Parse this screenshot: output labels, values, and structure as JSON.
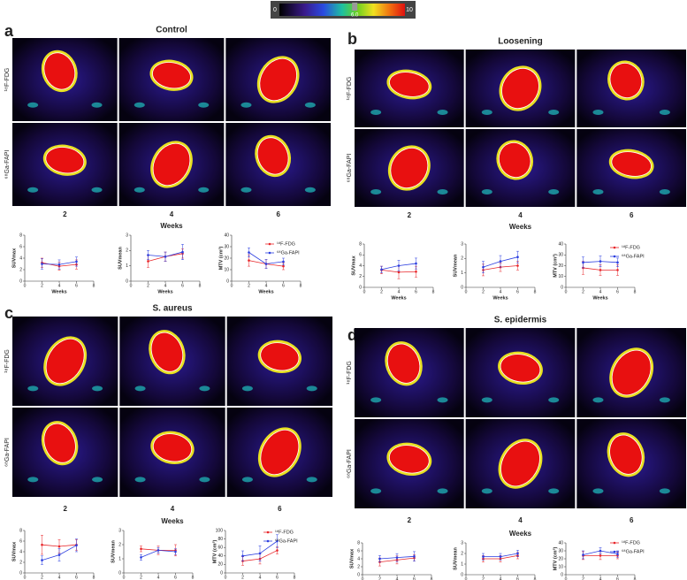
{
  "colorbar": {
    "ticks": [
      0,
      10
    ],
    "marker": {
      "value": 6,
      "label": "6.0"
    }
  },
  "panels": [
    {
      "letter": "a",
      "title": "Control",
      "rows": [
        "¹⁸F-FDG",
        "⁶⁸Ga-FAPI"
      ],
      "weeks": [
        "2",
        "4",
        "6"
      ],
      "xlabel": "Weeks"
    },
    {
      "letter": "b",
      "title": "Loosening",
      "rows": [
        "¹⁸F-FDG",
        "⁶⁸Ga-FAPI"
      ],
      "weeks": [
        "2",
        "4",
        "6"
      ],
      "xlabel": "Weeks"
    },
    {
      "letter": "c",
      "title": "S. aureus",
      "rows": [
        "¹⁸F-FDG",
        "⁶⁸Ga-FAPI"
      ],
      "weeks": [
        "2",
        "4",
        "6"
      ],
      "xlabel": "Weeks"
    },
    {
      "letter": "d",
      "title": "S. epidermis",
      "rows": [
        "¹⁸F-FDG",
        "⁶⁸Ga-FAPI"
      ],
      "weeks": [
        "2",
        "4",
        "6"
      ],
      "xlabel": "Weeks"
    }
  ],
  "chart_data": [
    {
      "type": "line",
      "ylabel": "SUVmax",
      "xlabel": "Weeks",
      "x": [
        2,
        4,
        6
      ],
      "xlim": [
        0,
        8
      ],
      "xticks": [
        0,
        2,
        4,
        6,
        8
      ],
      "ylim": [
        0,
        8
      ],
      "yticks": [
        0,
        2,
        4,
        6,
        8
      ],
      "series": [
        {
          "color": "#e8262a",
          "values": [
            3.2,
            2.6,
            2.9
          ],
          "errors": [
            0.8,
            0.7,
            0.8
          ]
        },
        {
          "color": "#2b3ee0",
          "values": [
            3.0,
            2.9,
            3.4
          ],
          "errors": [
            0.9,
            0.8,
            0.8
          ]
        }
      ]
    },
    {
      "type": "line",
      "ylabel": "SUVmean",
      "xlabel": "Weeks",
      "x": [
        2,
        4,
        6
      ],
      "xlim": [
        0,
        8
      ],
      "xticks": [
        0,
        2,
        4,
        6,
        8
      ],
      "ylim": [
        0,
        3
      ],
      "yticks": [
        0,
        1,
        2,
        3
      ],
      "series": [
        {
          "color": "#e8262a",
          "values": [
            1.3,
            1.6,
            1.8
          ],
          "errors": [
            0.4,
            0.3,
            0.3
          ]
        },
        {
          "color": "#2b3ee0",
          "values": [
            1.7,
            1.6,
            1.9
          ],
          "errors": [
            0.3,
            0.3,
            0.5
          ]
        }
      ]
    },
    {
      "type": "line",
      "ylabel": "MTV (cm³)",
      "xlabel": "Weeks",
      "x": [
        2,
        4,
        6
      ],
      "xlim": [
        0,
        8
      ],
      "xticks": [
        0,
        2,
        4,
        6,
        8
      ],
      "ylim": [
        0,
        40
      ],
      "yticks": [
        0,
        10,
        20,
        30,
        40
      ],
      "legend": true,
      "series": [
        {
          "name": "¹⁸F-FDG",
          "color": "#e8262a",
          "values": [
            18,
            15,
            13
          ],
          "errors": [
            5,
            4,
            3
          ]
        },
        {
          "name": "⁶⁸Ga-FAPI",
          "color": "#2b3ee0",
          "values": [
            25,
            15,
            17
          ],
          "errors": [
            4,
            4,
            3
          ]
        }
      ]
    },
    {
      "type": "line",
      "ylabel": "SUVmax",
      "xlabel": "Weeks",
      "x": [
        2,
        4,
        6
      ],
      "xlim": [
        0,
        8
      ],
      "xticks": [
        0,
        2,
        4,
        6,
        8
      ],
      "ylim": [
        0,
        8
      ],
      "yticks": [
        0,
        2,
        4,
        6,
        8
      ],
      "series": [
        {
          "color": "#e8262a",
          "values": [
            3.2,
            2.8,
            2.9
          ],
          "errors": [
            0.7,
            1.2,
            1.0
          ]
        },
        {
          "color": "#2b3ee0",
          "values": [
            3.3,
            4.0,
            4.4
          ],
          "errors": [
            0.6,
            1.0,
            1.0
          ]
        }
      ]
    },
    {
      "type": "line",
      "ylabel": "SUVmean",
      "xlabel": "Weeks",
      "x": [
        2,
        4,
        6
      ],
      "xlim": [
        0,
        8
      ],
      "xticks": [
        0,
        2,
        4,
        6,
        8
      ],
      "ylim": [
        0,
        3
      ],
      "yticks": [
        0,
        1,
        2,
        3
      ],
      "series": [
        {
          "color": "#e8262a",
          "values": [
            1.2,
            1.4,
            1.5
          ],
          "errors": [
            0.4,
            0.3,
            0.3
          ]
        },
        {
          "color": "#2b3ee0",
          "values": [
            1.4,
            1.8,
            2.1
          ],
          "errors": [
            0.4,
            0.4,
            0.4
          ]
        }
      ]
    },
    {
      "type": "line",
      "ylabel": "MTV (cm³)",
      "xlabel": "Weeks",
      "x": [
        2,
        4,
        6
      ],
      "xlim": [
        0,
        8
      ],
      "xticks": [
        0,
        2,
        4,
        6,
        8
      ],
      "ylim": [
        0,
        40
      ],
      "yticks": [
        0,
        10,
        20,
        30,
        40
      ],
      "legend": true,
      "series": [
        {
          "name": "¹⁸F-FDG",
          "color": "#e8262a",
          "values": [
            18,
            16,
            16
          ],
          "errors": [
            6,
            5,
            5
          ]
        },
        {
          "name": "⁶⁸Ga-FAPI",
          "color": "#2b3ee0",
          "values": [
            23,
            24,
            23
          ],
          "errors": [
            5,
            5,
            4
          ]
        }
      ]
    },
    {
      "type": "line",
      "ylabel": "SUVmax",
      "xlabel": "Weeks",
      "x": [
        2,
        4,
        6
      ],
      "xlim": [
        0,
        8
      ],
      "xticks": [
        0,
        2,
        4,
        6,
        8
      ],
      "ylim": [
        0,
        8
      ],
      "yticks": [
        0,
        2,
        4,
        6,
        8
      ],
      "series": [
        {
          "color": "#e8262a",
          "values": [
            5.3,
            5.0,
            5.3
          ],
          "errors": [
            1.8,
            1.3,
            1.0
          ]
        },
        {
          "color": "#2b3ee0",
          "values": [
            2.4,
            3.4,
            5.2
          ],
          "errors": [
            0.8,
            1.2,
            1.2
          ]
        }
      ]
    },
    {
      "type": "line",
      "ylabel": "SUVmean",
      "xlabel": "Weeks",
      "x": [
        2,
        4,
        6
      ],
      "xlim": [
        0,
        8
      ],
      "xticks": [
        0,
        2,
        4,
        6,
        8
      ],
      "ylim": [
        0,
        3
      ],
      "yticks": [
        0,
        1,
        2,
        3
      ],
      "series": [
        {
          "color": "#e8262a",
          "values": [
            1.7,
            1.6,
            1.6
          ],
          "errors": [
            0.2,
            0.3,
            0.4
          ]
        },
        {
          "color": "#2b3ee0",
          "values": [
            1.1,
            1.6,
            1.5
          ],
          "errors": [
            0.2,
            0.2,
            0.2
          ]
        }
      ]
    },
    {
      "type": "line",
      "ylabel": "MTV (cm³)",
      "xlabel": "Weeks",
      "x": [
        2,
        4,
        6
      ],
      "xlim": [
        0,
        8
      ],
      "xticks": [
        0,
        2,
        4,
        6,
        8
      ],
      "ylim": [
        0,
        100
      ],
      "yticks": [
        0,
        20,
        40,
        60,
        80,
        100
      ],
      "legend": true,
      "series": [
        {
          "name": "¹⁸F-FDG",
          "color": "#e8262a",
          "values": [
            28,
            33,
            53
          ],
          "errors": [
            10,
            12,
            8
          ]
        },
        {
          "name": "⁶⁸Ga-FAPI",
          "color": "#2b3ee0",
          "values": [
            40,
            46,
            75
          ],
          "errors": [
            12,
            18,
            15
          ]
        }
      ]
    },
    {
      "type": "line",
      "ylabel": "SUVmax",
      "xlabel": "Weeks",
      "x": [
        2,
        4,
        6
      ],
      "xlim": [
        0,
        8
      ],
      "xticks": [
        0,
        2,
        4,
        6,
        8
      ],
      "ylim": [
        0,
        8
      ],
      "yticks": [
        0,
        2,
        4,
        6,
        8
      ],
      "series": [
        {
          "color": "#e8262a",
          "values": [
            3.2,
            3.7,
            4.2
          ],
          "errors": [
            1.0,
            1.0,
            0.8
          ]
        },
        {
          "color": "#2b3ee0",
          "values": [
            4.0,
            4.3,
            4.6
          ],
          "errors": [
            0.8,
            1.0,
            1.2
          ]
        }
      ]
    },
    {
      "type": "line",
      "ylabel": "SUVmean",
      "xlabel": "Weeks",
      "x": [
        2,
        4,
        6
      ],
      "xlim": [
        0,
        8
      ],
      "xticks": [
        0,
        2,
        4,
        6,
        8
      ],
      "ylim": [
        0,
        3
      ],
      "yticks": [
        0,
        1,
        2,
        3
      ],
      "series": [
        {
          "color": "#e8262a",
          "values": [
            1.5,
            1.5,
            1.8
          ],
          "errors": [
            0.3,
            0.3,
            0.3
          ]
        },
        {
          "color": "#2b3ee0",
          "values": [
            1.7,
            1.7,
            2.0
          ],
          "errors": [
            0.3,
            0.3,
            0.3
          ]
        }
      ]
    },
    {
      "type": "line",
      "ylabel": "MTV (cm³)",
      "xlabel": "Weeks",
      "x": [
        2,
        4,
        6
      ],
      "xlim": [
        0,
        8
      ],
      "xticks": [
        0,
        2,
        4,
        6,
        8
      ],
      "ylim": [
        0,
        40
      ],
      "yticks": [
        0,
        10,
        20,
        30,
        40
      ],
      "legend": true,
      "series": [
        {
          "name": "¹⁸F-FDG",
          "color": "#e8262a",
          "values": [
            24,
            24,
            24
          ],
          "errors": [
            5,
            5,
            4
          ]
        },
        {
          "name": "⁶⁸Ga-FAPI",
          "color": "#2b3ee0",
          "values": [
            25,
            30,
            26
          ],
          "errors": [
            5,
            4,
            4
          ]
        }
      ]
    }
  ]
}
